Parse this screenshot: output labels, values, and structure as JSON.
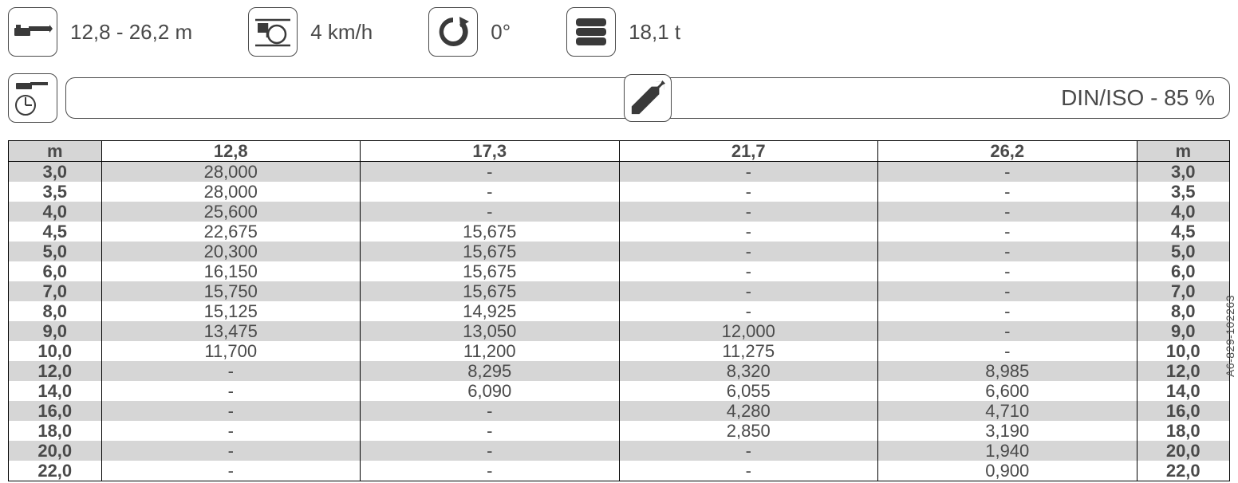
{
  "specs": {
    "boom_range": "12,8 - 26,2 m",
    "speed": "4 km/h",
    "slew": "0°",
    "counterweight": "18,1 t"
  },
  "banner": {
    "standard": "DIN/ISO - 85 %"
  },
  "table": {
    "unit_label": "m",
    "columns": [
      "12,8",
      "17,3",
      "21,7",
      "26,2"
    ],
    "rows": [
      {
        "r": "3,0",
        "v": [
          "28,000",
          "-",
          "-",
          "-"
        ]
      },
      {
        "r": "3,5",
        "v": [
          "28,000",
          "-",
          "-",
          "-"
        ]
      },
      {
        "r": "4,0",
        "v": [
          "25,600",
          "-",
          "-",
          "-"
        ]
      },
      {
        "r": "4,5",
        "v": [
          "22,675",
          "15,675",
          "-",
          "-"
        ]
      },
      {
        "r": "5,0",
        "v": [
          "20,300",
          "15,675",
          "-",
          "-"
        ]
      },
      {
        "r": "6,0",
        "v": [
          "16,150",
          "15,675",
          "-",
          "-"
        ]
      },
      {
        "r": "7,0",
        "v": [
          "15,750",
          "15,675",
          "-",
          "-"
        ]
      },
      {
        "r": "8,0",
        "v": [
          "15,125",
          "14,925",
          "-",
          "-"
        ]
      },
      {
        "r": "9,0",
        "v": [
          "13,475",
          "13,050",
          "12,000",
          "-"
        ]
      },
      {
        "r": "10,0",
        "v": [
          "11,700",
          "11,200",
          "11,275",
          "-"
        ]
      },
      {
        "r": "12,0",
        "v": [
          "-",
          "8,295",
          "8,320",
          "8,985"
        ]
      },
      {
        "r": "14,0",
        "v": [
          "-",
          "6,090",
          "6,055",
          "6,600"
        ]
      },
      {
        "r": "16,0",
        "v": [
          "-",
          "-",
          "4,280",
          "4,710"
        ]
      },
      {
        "r": "18,0",
        "v": [
          "-",
          "-",
          "2,850",
          "3,190"
        ]
      },
      {
        "r": "20,0",
        "v": [
          "-",
          "-",
          "-",
          "1,940"
        ]
      },
      {
        "r": "22,0",
        "v": [
          "-",
          "-",
          "-",
          "0,900"
        ]
      }
    ]
  },
  "doc_id": "A6-829-102263",
  "colors": {
    "text": "#4a4a4a",
    "shade": "#d6d6d6",
    "border": "#000000",
    "background": "#ffffff"
  }
}
